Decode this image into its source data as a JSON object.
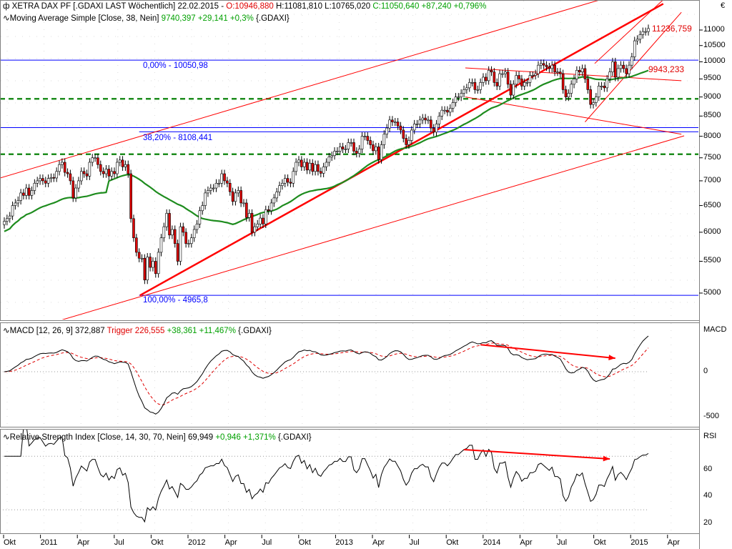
{
  "header": {
    "icon": "candlestick-icon",
    "title": "XETRA DAX PF [.GDAXI LAST Wöchentlich] 22.02.2015 -",
    "open": "O:10946,880",
    "hl": "H:11081,810 L:10765,020",
    "close": "C:11050,640 +87,240 +0,796%"
  },
  "ma_header": {
    "icon": "line-icon",
    "title": "Moving Average Simple [Close, 38, Nein]",
    "value": "9740,397 +29,141 +0,3%",
    "suffix": "{.GDAXI}"
  },
  "macd_header": {
    "title": "MACD [12, 26, 9] 372,887",
    "trigger": "Trigger 226,555",
    "change": "+38,361 +11,467%",
    "suffix": "{.GDAXI}"
  },
  "rsi_header": {
    "title": "Relative Strength Index [Close, 14, 30, 70, Nein] 69,949",
    "change": "+0,946 +1,371%",
    "suffix": "{.GDAXI}"
  },
  "annotations": {
    "fib0": "0,00% - 10050,98",
    "fib382": "38,20% - 8108,441",
    "fib100": "100,00% - 4965,8",
    "high_label": "11236,759",
    "ma_label": "9943,233"
  },
  "axis": {
    "currency": "€",
    "price_ticks": [
      "11000",
      "10500",
      "10000",
      "9500",
      "9000",
      "8500",
      "8000",
      "7500",
      "7000",
      "6500",
      "6000",
      "5500",
      "5000"
    ],
    "macd_title": "MACD",
    "macd_ticks": [
      "0",
      "-500"
    ],
    "rsi_title": "RSI",
    "rsi_ticks": [
      "60",
      "40",
      "20"
    ],
    "time_ticks": [
      "Okt",
      "2011",
      "Apr",
      "Jul",
      "Okt",
      "2012",
      "Apr",
      "Jul",
      "Okt",
      "2013",
      "Apr",
      "Jul",
      "Okt",
      "2014",
      "Apr",
      "Jul",
      "Okt",
      "2015",
      "Apr"
    ]
  },
  "colors": {
    "up": "#ffffff",
    "down": "#e00000",
    "ma": "#1e8c1e",
    "fib": "#0000ff",
    "trend": "#ff0000"
  },
  "chart_data": {
    "type": "candlestick",
    "title": "XETRA DAX PF weekly",
    "scale": "log",
    "ylim": [
      4600,
      12000
    ],
    "levels": {
      "fib0": 10050.98,
      "fib382": 8108.441,
      "fib100": 4965.8,
      "resistance_blue": 8210,
      "dashed_green": [
        8950,
        7580
      ]
    },
    "closes": [
      6200,
      6250,
      6300,
      6500,
      6550,
      6600,
      6750,
      6700,
      6850,
      6700,
      6800,
      6950,
      7000,
      7050,
      7000,
      6950,
      7050,
      7070,
      7060,
      7200,
      7350,
      7400,
      7180,
      7150,
      7000,
      6650,
      6850,
      7000,
      7200,
      7150,
      7100,
      7400,
      7500,
      7500,
      7350,
      7200,
      7150,
      7250,
      7100,
      7200,
      7150,
      7400,
      7450,
      7300,
      7350,
      7150,
      6250,
      5900,
      5650,
      5550,
      5550,
      5200,
      5570,
      5400,
      5500,
      5300,
      5650,
      5900,
      6100,
      6350,
      5950,
      6050,
      5800,
      5500,
      6100,
      6000,
      5800,
      5800,
      5900,
      6050,
      6150,
      6400,
      6500,
      6750,
      6800,
      6850,
      6850,
      6950,
      6950,
      7150,
      7000,
      6950,
      6775,
      6580,
      6750,
      6800,
      6550,
      6550,
      6270,
      6350,
      6000,
      6100,
      6150,
      6260,
      6150,
      6420,
      6400,
      6550,
      6650,
      6770,
      6900,
      6950,
      7050,
      6970,
      6950,
      7200,
      7400,
      7450,
      7300,
      7400,
      7230,
      7380,
      7200,
      7350,
      7200,
      7160,
      7300,
      7400,
      7520,
      7550,
      7650,
      7650,
      7750,
      7700,
      7700,
      7850,
      7850,
      7650,
      7600,
      7700,
      8000,
      8000,
      7900,
      7800,
      7660,
      7750,
      7460,
      7800,
      8050,
      8200,
      8400,
      8350,
      8350,
      8250,
      8150,
      7950,
      7800,
      7900,
      8150,
      8300,
      8300,
      8400,
      8450,
      8400,
      8400,
      8200,
      8100,
      8300,
      8500,
      8650,
      8650,
      8600,
      8700,
      8850,
      9000,
      9000,
      9100,
      9200,
      9250,
      9400,
      9400,
      9200,
      9200,
      9400,
      9550,
      9450,
      9750,
      9700,
      9400,
      9300,
      9650,
      9650,
      9700,
      9350,
      9050,
      9350,
      9600,
      9500,
      9300,
      9400,
      9400,
      9600,
      9600,
      9650,
      9900,
      9950,
      9900,
      9850,
      9800,
      9900,
      9700,
      9700,
      9650,
      9200,
      9000,
      9100,
      9350,
      9500,
      9750,
      9700,
      9800,
      9500,
      9200,
      8800,
      8850,
      9000,
      9300,
      9300,
      9250,
      9500,
      9700,
      10000,
      9550,
      9800,
      9900,
      9800,
      9650,
      9900,
      10150,
      10650,
      10700,
      10850,
      10950,
      10950,
      11050
    ],
    "ma_period": 38,
    "macd_params": [
      12,
      26,
      9
    ],
    "rsi_params": [
      14,
      30,
      70
    ],
    "trendlines": [
      {
        "from": [
          -1.5,
          7060
        ],
        "to": [
          216,
          12030
        ],
        "width": 1
      },
      {
        "from": [
          18.8,
          4590
        ],
        "to": [
          247,
          8010
        ],
        "width": 1
      },
      {
        "from": [
          49.3,
          4965.8
        ],
        "to": [
          239.4,
          11900
        ],
        "width": 2.5
      },
      {
        "from": [
          167.5,
          9820
        ],
        "to": [
          246,
          9450
        ],
        "width": 1
      },
      {
        "from": [
          167.5,
          9000
        ],
        "to": [
          246,
          8050
        ],
        "width": 1
      },
      {
        "from": [
          211,
          8350
        ],
        "to": [
          246,
          11600
        ],
        "width": 1
      },
      {
        "from": [
          214.5,
          9950
        ],
        "to": [
          240,
          12100
        ],
        "width": 1
      }
    ],
    "divergence_arrows": {
      "macd": [
        [
          173,
          300
        ],
        [
          222,
          150
        ]
      ],
      "rsi": [
        [
          167,
          75
        ],
        [
          220,
          68
        ]
      ]
    }
  }
}
